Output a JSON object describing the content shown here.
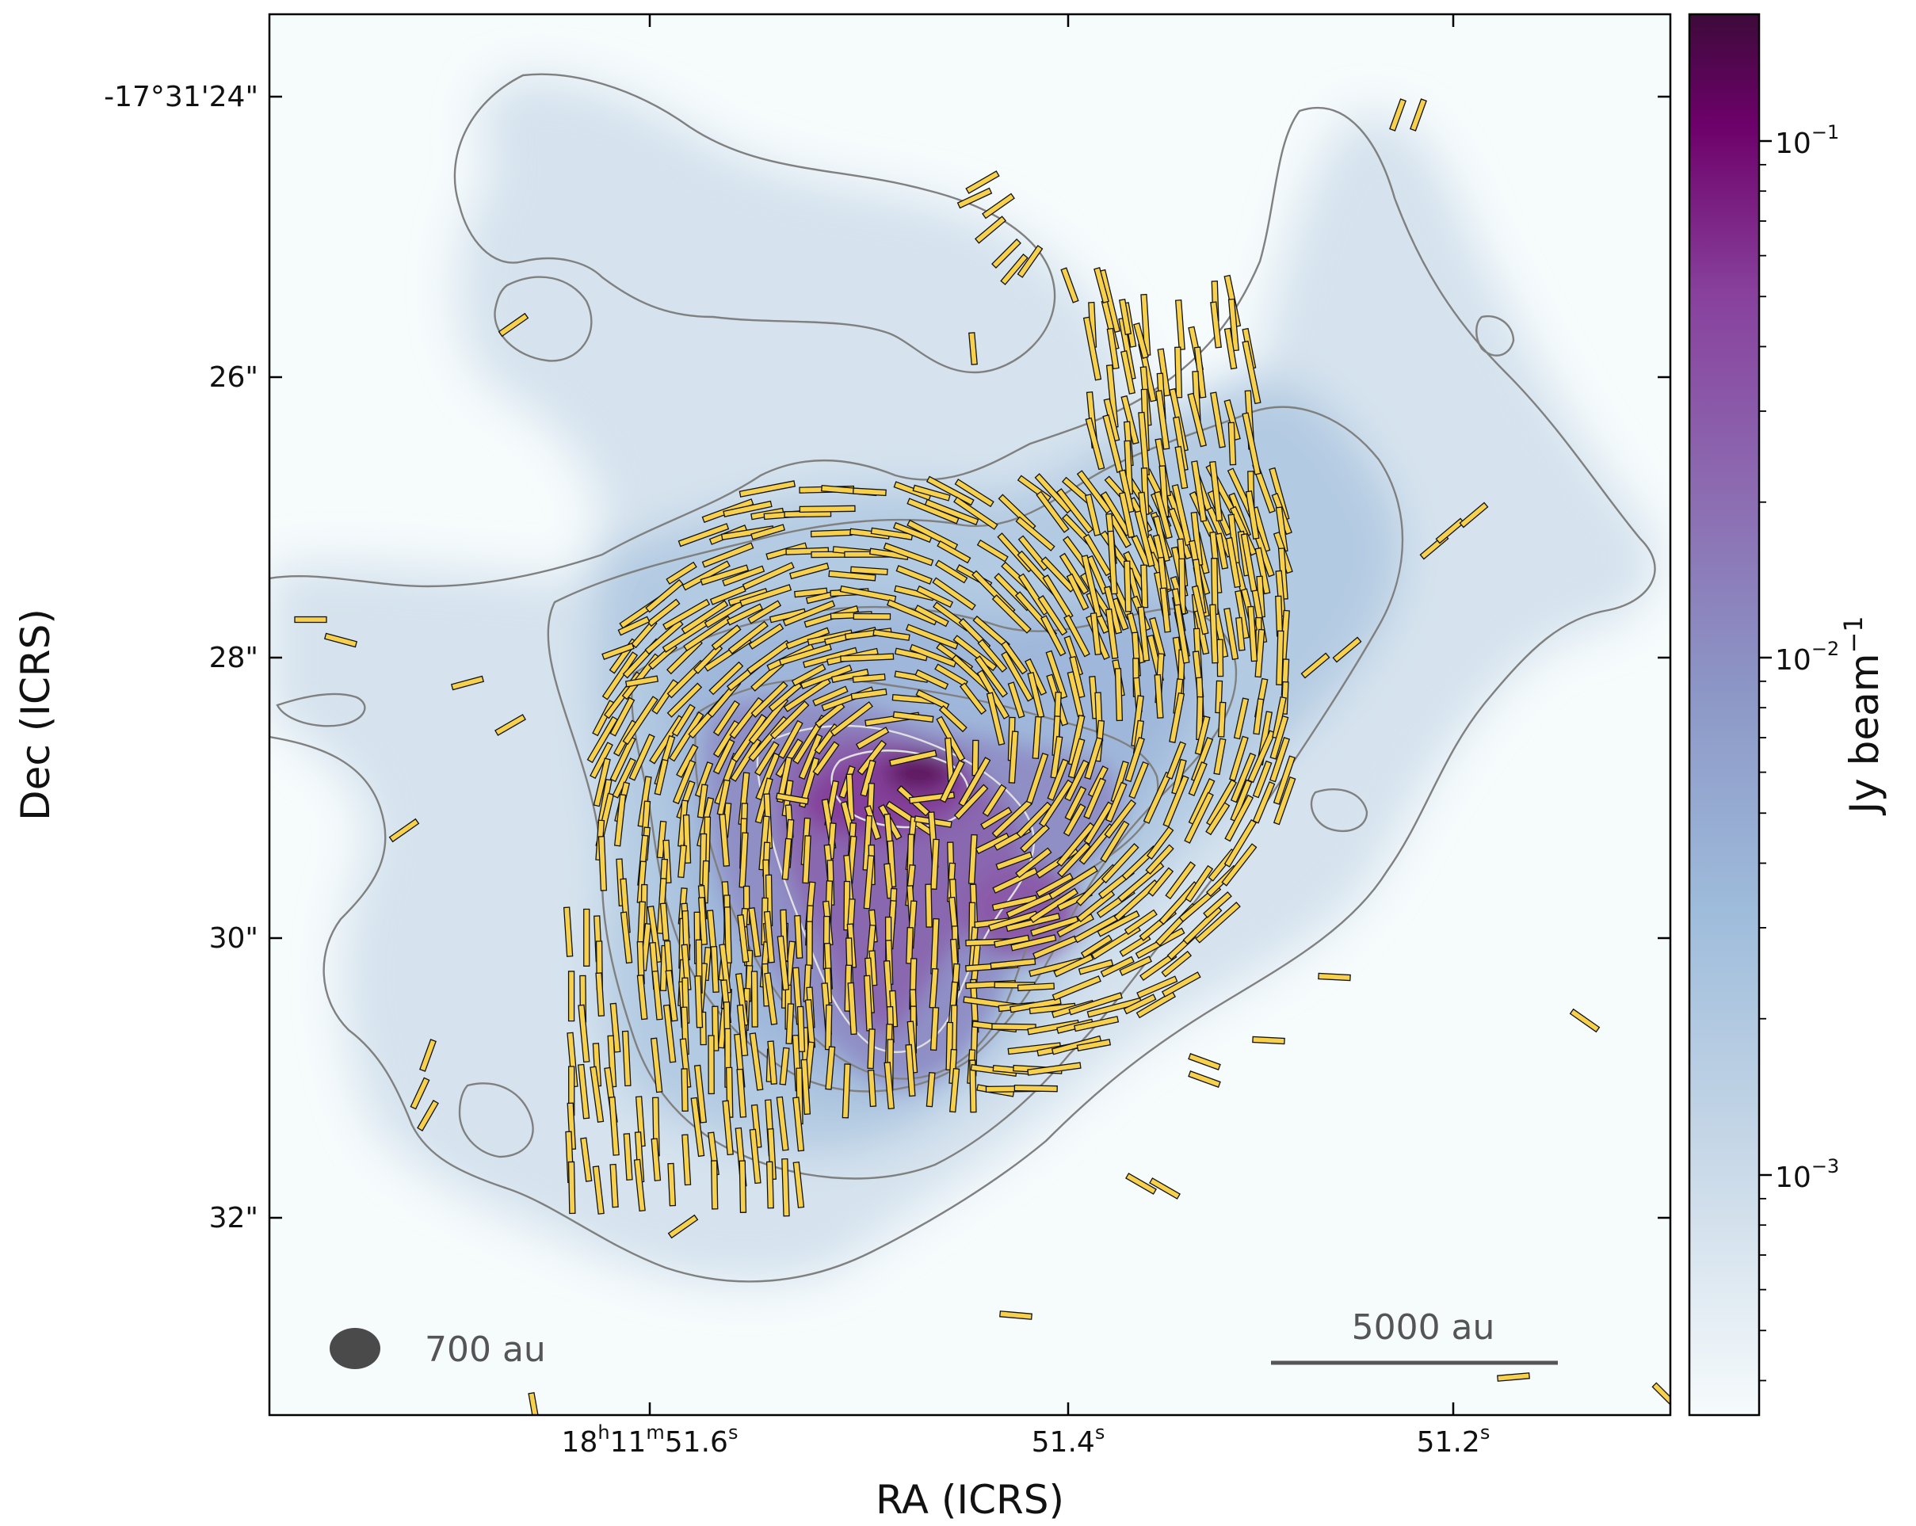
{
  "figure": {
    "x_axis_label": "RA (ICRS)",
    "y_axis_label": "Dec (ICRS)",
    "x_ticks": [
      {
        "label_main": "18",
        "sup1": "h",
        "mid1": "11",
        "sup2": "m",
        "mid2": "51.6",
        "sup3": "s",
        "value": 51.6
      },
      {
        "label_main": "51.4",
        "sup1": "s",
        "value": 51.4
      },
      {
        "label_main": "51.2",
        "sup1": "s",
        "value": 51.2
      }
    ],
    "y_ticks": [
      {
        "label": "-17°31'24\"",
        "value": 24
      },
      {
        "label": "26\"",
        "value": 26
      },
      {
        "label": "28\"",
        "value": 28
      },
      {
        "label": "30\"",
        "value": 30
      },
      {
        "label": "32\"",
        "value": 32
      }
    ],
    "beam_label": "700 au",
    "scalebar_label": "5000 au",
    "colorbar": {
      "label": "Jy beam",
      "label_sup": "−1",
      "scale": "log",
      "ticks": [
        {
          "base": "10",
          "exp": "−1",
          "value": 0.1
        },
        {
          "base": "10",
          "exp": "−2",
          "value": 0.01
        },
        {
          "base": "10",
          "exp": "−3",
          "value": 0.001
        }
      ],
      "colors": [
        "#f6fbfc",
        "#c9d9e8",
        "#9ebcdb",
        "#8c96c6",
        "#8c6bb1",
        "#88419d",
        "#6e016b",
        "#3d0a3a"
      ]
    },
    "vector_color": "#f7d14b",
    "contour_color_outer": "#808080",
    "contour_color_inner": "#e0e0e0"
  }
}
